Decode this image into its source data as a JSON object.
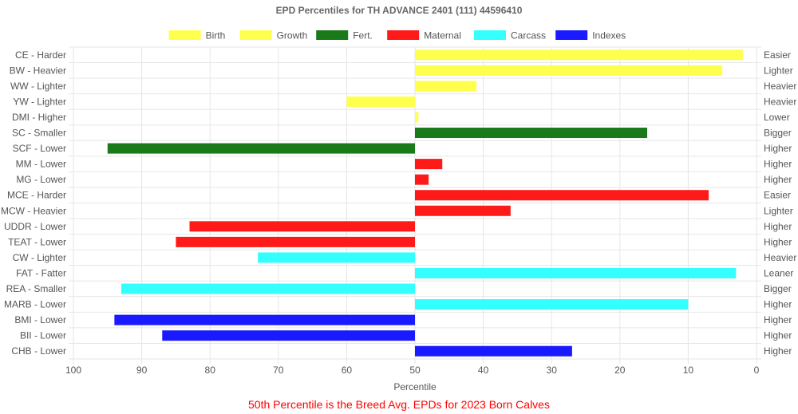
{
  "chart_data": {
    "type": "bar",
    "orientation": "horizontal",
    "title": "EPD Percentiles for TH ADVANCE 2401 (111) 44596410",
    "xlabel": "Percentile",
    "xlim": [
      100,
      0
    ],
    "x_reversed": true,
    "baseline": 50,
    "xticks": [
      "100",
      "90",
      "80",
      "70",
      "60",
      "50",
      "40",
      "30",
      "20",
      "10",
      "0"
    ],
    "grid": true,
    "legend_position": "top",
    "legend": [
      {
        "name": "Birth",
        "color": "#ffff4d"
      },
      {
        "name": "Growth",
        "color": "#ffff4d"
      },
      {
        "name": "Fert.",
        "color": "#1a7a1a"
      },
      {
        "name": "Maternal",
        "color": "#ff1a1a"
      },
      {
        "name": "Carcass",
        "color": "#33ffff"
      },
      {
        "name": "Indexes",
        "color": "#1a1aff"
      }
    ],
    "categories": [
      "CE - Harder",
      "BW - Heavier",
      "WW - Lighter",
      "YW - Lighter",
      "DMI - Higher",
      "SC - Smaller",
      "SCF - Lower",
      "MM - Lower",
      "MG - Lower",
      "MCE - Harder",
      "MCW - Heavier",
      "UDDR - Lower",
      "TEAT - Lower",
      "CW - Lighter",
      "FAT - Fatter",
      "REA - Smaller",
      "MARB - Lower",
      "BMI - Lower",
      "BII - Lower",
      "CHB - Lower"
    ],
    "right_labels": [
      "Easier",
      "Lighter",
      "Heavier",
      "Heavier",
      "Lower",
      "Bigger",
      "Higher",
      "Higher",
      "Higher",
      "Easier",
      "Lighter",
      "Higher",
      "Higher",
      "Heavier",
      "Leaner",
      "Bigger",
      "Higher",
      "Higher",
      "Higher",
      "Higher"
    ],
    "values": [
      2,
      5,
      41,
      60,
      49.5,
      16,
      95,
      46,
      48,
      7,
      36,
      83,
      85,
      73,
      3,
      93,
      10,
      94,
      87,
      27
    ],
    "groups": [
      "Birth",
      "Birth",
      "Growth",
      "Growth",
      "Growth",
      "Fert.",
      "Fert.",
      "Maternal",
      "Maternal",
      "Maternal",
      "Maternal",
      "Maternal",
      "Maternal",
      "Carcass",
      "Carcass",
      "Carcass",
      "Carcass",
      "Indexes",
      "Indexes",
      "Indexes"
    ]
  },
  "footnote": "50th Percentile is the Breed Avg. EPDs for 2023 Born Calves"
}
